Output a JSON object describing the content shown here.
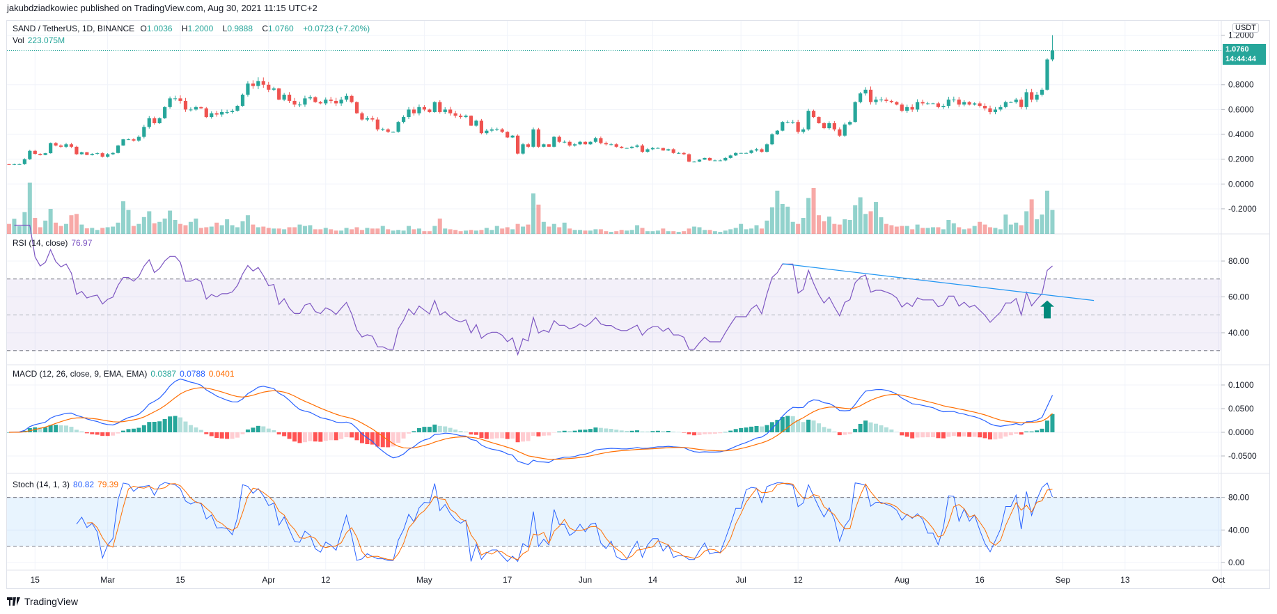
{
  "publisher": "jakubdziadkowiec published on TradingView.com, Aug 30, 2021 11:15 UTC+2",
  "symbol": {
    "title": "SAND / TetherUS, 1D, BINANCE",
    "o_label": "O",
    "o": "1.0036",
    "h_label": "H",
    "h": "1.2000",
    "l_label": "L",
    "l": "0.9888",
    "c_label": "C",
    "c": "1.0760",
    "change": "+0.0723 (+7.20%)",
    "vol_label": "Vol",
    "vol": "223.075M"
  },
  "currency": "USDT",
  "last_price": {
    "price": "1.0760",
    "countdown": "14:44:44"
  },
  "colors": {
    "up": "#26a69a",
    "down": "#ef5350",
    "rsi": "#7e57c2",
    "macd": "#2962ff",
    "signal": "#ff6d00",
    "stoch_k": "#2962ff",
    "stoch_d": "#ff6d00",
    "trendline": "#2196f3",
    "arrow": "#00897b"
  },
  "indicators": {
    "rsi": {
      "label": "RSI (14, close)",
      "value": "76.97"
    },
    "macd": {
      "label": "MACD (12, 26, close, 9, EMA, EMA)",
      "hist": "0.0387",
      "macd": "0.0788",
      "signal": "0.0401"
    },
    "stoch": {
      "label": "Stoch (14, 1, 3)",
      "k": "80.82",
      "d": "79.39"
    }
  },
  "footer": {
    "brand": "TradingView"
  },
  "chart_data": {
    "type": "candlestick",
    "start_date": "2021-02-10",
    "interval": "1D",
    "close": [
      0.155,
      0.16,
      0.16,
      0.2,
      0.267,
      0.243,
      0.234,
      0.248,
      0.33,
      0.31,
      0.3,
      0.32,
      0.3,
      0.24,
      0.256,
      0.234,
      0.243,
      0.248,
      0.22,
      0.24,
      0.25,
      0.31,
      0.36,
      0.36,
      0.35,
      0.38,
      0.46,
      0.53,
      0.49,
      0.53,
      0.62,
      0.69,
      0.69,
      0.67,
      0.6,
      0.6,
      0.62,
      0.61,
      0.54,
      0.57,
      0.56,
      0.58,
      0.58,
      0.59,
      0.63,
      0.72,
      0.81,
      0.79,
      0.83,
      0.8,
      0.76,
      0.77,
      0.68,
      0.72,
      0.67,
      0.64,
      0.64,
      0.69,
      0.7,
      0.66,
      0.65,
      0.68,
      0.67,
      0.65,
      0.68,
      0.71,
      0.66,
      0.57,
      0.52,
      0.53,
      0.52,
      0.44,
      0.44,
      0.42,
      0.42,
      0.5,
      0.54,
      0.6,
      0.57,
      0.62,
      0.6,
      0.58,
      0.66,
      0.58,
      0.6,
      0.57,
      0.55,
      0.54,
      0.55,
      0.47,
      0.51,
      0.41,
      0.43,
      0.44,
      0.44,
      0.42,
      0.375,
      0.39,
      0.245,
      0.32,
      0.3,
      0.44,
      0.3,
      0.32,
      0.3,
      0.38,
      0.34,
      0.34,
      0.31,
      0.32,
      0.34,
      0.32,
      0.34,
      0.37,
      0.33,
      0.32,
      0.32,
      0.3,
      0.29,
      0.29,
      0.3,
      0.31,
      0.26,
      0.28,
      0.29,
      0.29,
      0.27,
      0.28,
      0.25,
      0.25,
      0.24,
      0.18,
      0.18,
      0.196,
      0.21,
      0.19,
      0.19,
      0.19,
      0.21,
      0.23,
      0.25,
      0.25,
      0.25,
      0.27,
      0.28,
      0.26,
      0.32,
      0.4,
      0.43,
      0.5,
      0.5,
      0.5,
      0.42,
      0.44,
      0.59,
      0.54,
      0.49,
      0.45,
      0.49,
      0.44,
      0.39,
      0.48,
      0.5,
      0.66,
      0.73,
      0.76,
      0.66,
      0.68,
      0.68,
      0.67,
      0.66,
      0.64,
      0.59,
      0.62,
      0.6,
      0.66,
      0.65,
      0.65,
      0.65,
      0.62,
      0.63,
      0.68,
      0.68,
      0.64,
      0.66,
      0.64,
      0.65,
      0.63,
      0.61,
      0.58,
      0.6,
      0.62,
      0.66,
      0.66,
      0.68,
      0.62,
      0.74,
      0.68,
      0.72,
      0.76,
      1.0036,
      1.076
    ],
    "last_candle": {
      "open": 1.0036,
      "high": 1.2,
      "low": 0.9888,
      "close": 1.076
    },
    "volume_millions": [
      93,
      141,
      72,
      203,
      477,
      149,
      62,
      124,
      233,
      105,
      74,
      93,
      174,
      186,
      87,
      52,
      56,
      37,
      56,
      62,
      68,
      105,
      304,
      223,
      74,
      93,
      157,
      211,
      99,
      112,
      143,
      217,
      130,
      93,
      81,
      112,
      143,
      56,
      62,
      68,
      105,
      81,
      136,
      81,
      62,
      118,
      174,
      87,
      62,
      68,
      56,
      50,
      50,
      43,
      62,
      62,
      87,
      74,
      81,
      43,
      43,
      56,
      43,
      31,
      31,
      56,
      43,
      62,
      37,
      56,
      50,
      50,
      74,
      43,
      31,
      37,
      31,
      74,
      43,
      50,
      25,
      25,
      74,
      143,
      50,
      43,
      37,
      25,
      31,
      37,
      31,
      37,
      56,
      37,
      74,
      50,
      62,
      43,
      93,
      68,
      87,
      378,
      273,
      112,
      68,
      93,
      62,
      105,
      50,
      37,
      37,
      31,
      31,
      43,
      43,
      25,
      19,
      25,
      37,
      31,
      37,
      81,
      56,
      25,
      25,
      31,
      50,
      25,
      25,
      19,
      25,
      50,
      68,
      62,
      37,
      37,
      25,
      19,
      31,
      43,
      56,
      93,
      43,
      50,
      81,
      50,
      124,
      248,
      403,
      279,
      254,
      112,
      93,
      149,
      335,
      428,
      174,
      118,
      161,
      93,
      87,
      136,
      130,
      267,
      341,
      186,
      211,
      298,
      155,
      93,
      81,
      68,
      74,
      74,
      43,
      87,
      56,
      56,
      62,
      62,
      43,
      130,
      99,
      62,
      43,
      50,
      74,
      112,
      87,
      62,
      56,
      43,
      180,
      87,
      105,
      81,
      211,
      322,
      136,
      180,
      403,
      223
    ],
    "price_axis": {
      "ticks": [
        "1.2000",
        "0.8000",
        "0.6000",
        "0.4000",
        "0.2000",
        "0.0000",
        "-0.2000"
      ]
    },
    "rsi_axis": {
      "ticks": [
        "80.00",
        "60.00",
        "40.00"
      ],
      "band": [
        30,
        70
      ],
      "mid": 50
    },
    "macd_axis": {
      "ticks": [
        "0.1000",
        "0.0500",
        "0.0000",
        "-0.0500"
      ]
    },
    "stoch_axis": {
      "ticks": [
        "80.00",
        "40.00",
        "0.00"
      ],
      "band": [
        20,
        80
      ]
    },
    "time_axis": [
      {
        "label": "15",
        "date": "2021-02-15"
      },
      {
        "label": "Mar",
        "date": "2021-03-01"
      },
      {
        "label": "15",
        "date": "2021-03-15"
      },
      {
        "label": "Apr",
        "date": "2021-04-01"
      },
      {
        "label": "12",
        "date": "2021-04-12"
      },
      {
        "label": "May",
        "date": "2021-05-01"
      },
      {
        "label": "17",
        "date": "2021-05-17"
      },
      {
        "label": "Jun",
        "date": "2021-06-01"
      },
      {
        "label": "14",
        "date": "2021-06-14"
      },
      {
        "label": "Jul",
        "date": "2021-07-01"
      },
      {
        "label": "12",
        "date": "2021-07-12"
      },
      {
        "label": "Aug",
        "date": "2021-08-01"
      },
      {
        "label": "16",
        "date": "2021-08-16"
      },
      {
        "label": "Sep",
        "date": "2021-09-01"
      },
      {
        "label": "13",
        "date": "2021-09-13"
      },
      {
        "label": "Oct",
        "date": "2021-10-01"
      }
    ],
    "annotations": {
      "rsi_trendline": {
        "from": {
          "date": "2021-07-09",
          "value": 78.5
        },
        "to": {
          "date": "2021-09-07",
          "value": 58
        }
      },
      "rsi_arrow": {
        "date": "2021-08-29",
        "from": 48,
        "to": 58,
        "direction": "up"
      }
    }
  }
}
